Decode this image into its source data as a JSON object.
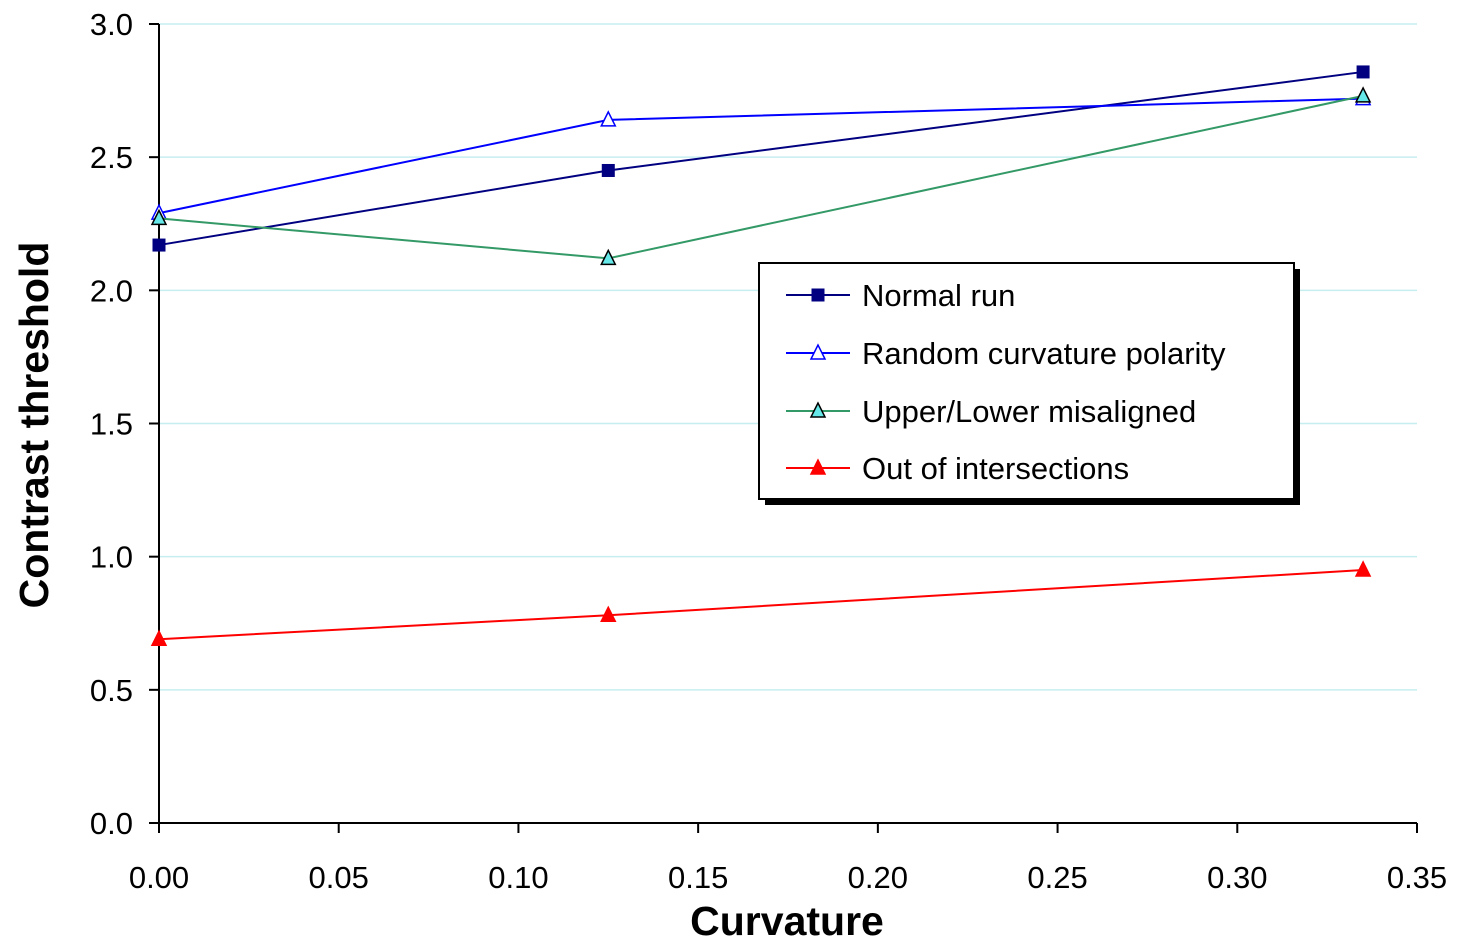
{
  "chart_data": {
    "type": "line",
    "title": "",
    "xlabel": "Curvature",
    "ylabel": "Contrast threshold",
    "xlim": [
      0,
      0.35
    ],
    "ylim": [
      0,
      3.0
    ],
    "x_ticks": [
      "0.00",
      "0.05",
      "0.10",
      "0.15",
      "0.20",
      "0.25",
      "0.30",
      "0.35"
    ],
    "y_ticks": [
      "0.0",
      "0.5",
      "1.0",
      "1.5",
      "2.0",
      "2.5",
      "3.0"
    ],
    "grid": "horizontal",
    "legend_position": "center-right",
    "x": [
      0.0,
      0.125,
      0.335
    ],
    "series": [
      {
        "name": "Normal run",
        "values": [
          2.17,
          2.45,
          2.82
        ],
        "color": "#000080",
        "marker": "filled-square"
      },
      {
        "name": "Random curvature polarity",
        "values": [
          2.29,
          2.64,
          2.72
        ],
        "color": "#0000ff",
        "marker": "open-triangle"
      },
      {
        "name": "Upper/Lower misaligned",
        "values": [
          2.27,
          2.12,
          2.73
        ],
        "color": "#339966",
        "marker": "cyan-triangle"
      },
      {
        "name": "Out of intersections",
        "values": [
          0.69,
          0.78,
          0.95
        ],
        "color": "#ff0000",
        "marker": "filled-triangle"
      }
    ]
  }
}
